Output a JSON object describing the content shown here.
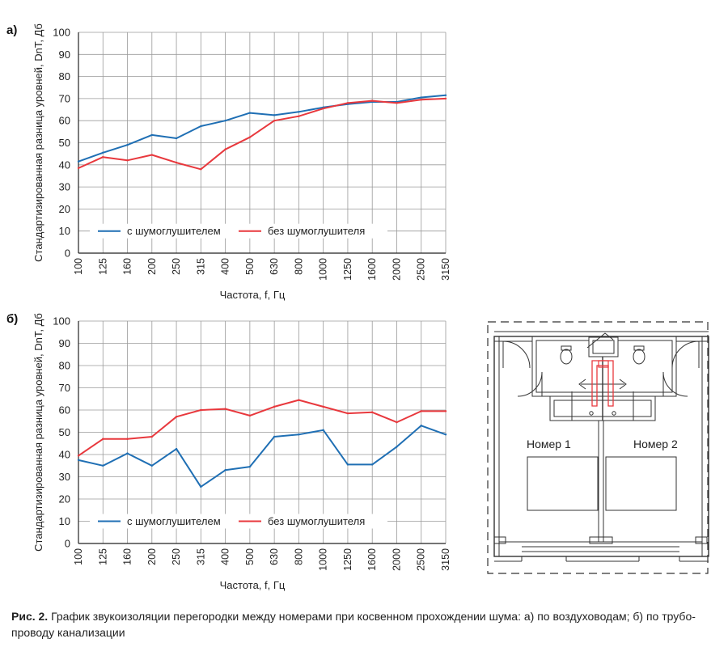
{
  "colors": {
    "series_blue": "#1f6fb4",
    "series_red": "#e8383d",
    "grid": "#9a9a9a",
    "axis": "#222222",
    "plan": "#333333"
  },
  "chart_data": [
    {
      "type": "line",
      "panel_label": "а)",
      "ylabel": "Стандартизированная разница уровней, DnT, Дб",
      "xlabel": "Частота, f, Гц",
      "categories": [
        "100",
        "125",
        "160",
        "200",
        "250",
        "315",
        "400",
        "500",
        "630",
        "800",
        "1000",
        "1250",
        "1600",
        "2000",
        "2500",
        "3150"
      ],
      "ylim": [
        0,
        100
      ],
      "yticks": [
        0,
        10,
        20,
        30,
        40,
        50,
        60,
        70,
        80,
        90,
        100
      ],
      "grid": true,
      "legend": "bottom",
      "series": [
        {
          "name": "с шумоглушителем",
          "color": "#1f6fb4",
          "values": [
            41.5,
            45.5,
            49,
            53.5,
            52,
            57.5,
            60,
            63.5,
            62.5,
            64,
            66,
            67.5,
            68.5,
            68.5,
            70.5,
            71.5
          ]
        },
        {
          "name": "без шумоглушителя",
          "color": "#e8383d",
          "values": [
            38.5,
            43.5,
            42,
            44.5,
            41,
            38,
            47,
            52.5,
            60,
            62,
            65.5,
            68,
            69,
            68,
            69.5,
            70
          ]
        }
      ]
    },
    {
      "type": "line",
      "panel_label": "б)",
      "ylabel": "Стандартизированная разница уровней, DnT, Дб",
      "xlabel": "Частота, f, Гц",
      "categories": [
        "100",
        "125",
        "160",
        "200",
        "250",
        "315",
        "400",
        "500",
        "630",
        "800",
        "1000",
        "1250",
        "1600",
        "2000",
        "2500",
        "3150"
      ],
      "ylim": [
        0,
        100
      ],
      "yticks": [
        0,
        10,
        20,
        30,
        40,
        50,
        60,
        70,
        80,
        90,
        100
      ],
      "grid": true,
      "legend": "bottom",
      "series": [
        {
          "name": "с шумоглушителем",
          "color": "#1f6fb4",
          "values": [
            37.5,
            35,
            40.5,
            35,
            42.5,
            25.5,
            33,
            34.5,
            48,
            49,
            51,
            35.5,
            35.5,
            43.5,
            53,
            49
          ]
        },
        {
          "name": "без шумоглушителя",
          "color": "#e8383d",
          "values": [
            39.5,
            47,
            47,
            48,
            57,
            60,
            60.5,
            57.5,
            61.5,
            64.5,
            61.5,
            58.5,
            59,
            54.5,
            59.5,
            59.5
          ]
        }
      ]
    }
  ],
  "floor_plan": {
    "room1": "Номер 1",
    "room2": "Номер 2"
  },
  "caption": {
    "bold": "Рис. 2.",
    "text": " График звукоизоляции перегородки между номерами при косвенном прохождении шума: а) по воздуховодам; б) по трубо-проводу канализации"
  }
}
